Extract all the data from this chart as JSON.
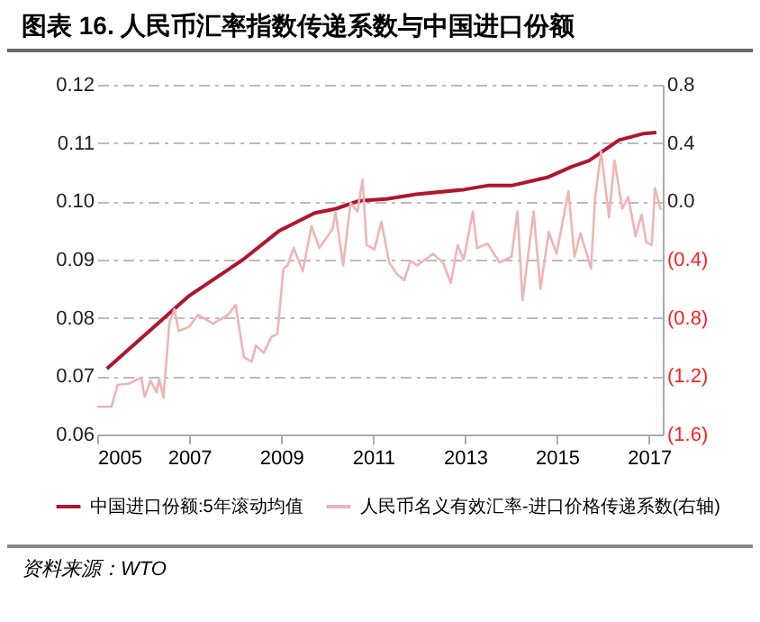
{
  "chart_data": {
    "type": "line",
    "title": "图表 16. 人民币汇率指数传递系数与中国进口份额",
    "annotations": [
      "资料来源：WTO"
    ],
    "xlim": [
      2005,
      2017.3
    ],
    "xticks": [
      2005,
      2007,
      2009,
      2011,
      2013,
      2015,
      2017
    ],
    "ylim": [
      0.06,
      0.12
    ],
    "yticks": [
      {
        "value": 0.06,
        "label": "0.06"
      },
      {
        "value": 0.07,
        "label": "0.07"
      },
      {
        "value": 0.08,
        "label": "0.08"
      },
      {
        "value": 0.09,
        "label": "0.09"
      },
      {
        "value": 0.1,
        "label": "0.10"
      },
      {
        "value": 0.11,
        "label": "0.11"
      },
      {
        "value": 0.12,
        "label": "0.12"
      }
    ],
    "y2lim": [
      -1.6,
      0.8
    ],
    "y2ticks": [
      {
        "value": -1.6,
        "label": "(1.6)"
      },
      {
        "value": -1.2,
        "label": "(1.2)"
      },
      {
        "value": -0.8,
        "label": "(0.8)"
      },
      {
        "value": -0.4,
        "label": "(0.4)"
      },
      {
        "value": 0,
        "label": "0.0"
      },
      {
        "value": 0.4,
        "label": "0.4"
      },
      {
        "value": 0.8,
        "label": "0.8"
      }
    ],
    "grid": "y",
    "legend": "bottom",
    "series": [
      {
        "name": "中国进口份额:5年滚动均值",
        "color": "#b0152d",
        "x": [
          2005.21,
          2007.0,
          2008.17,
          2008.95,
          2009.73,
          2010.18,
          2010.7,
          2011.29,
          2011.94,
          2012.97,
          2013.49,
          2014.01,
          2014.79,
          2015.31,
          2015.7,
          2016.35,
          2016.87,
          2017.16
        ],
        "values": [
          0.0713,
          0.0838,
          0.09,
          0.0949,
          0.098,
          0.0987,
          0.1001,
          0.1004,
          0.1012,
          0.102,
          0.1027,
          0.1027,
          0.1041,
          0.1059,
          0.107,
          0.1105,
          0.1116,
          0.1118
        ]
      },
      {
        "name": "人民币名义有效汇率-进口价格传递系数(右轴)",
        "color": "#f0b4b4",
        "axis": "y2",
        "x": [
          2005,
          2005.31,
          2005.44,
          2005.7,
          2005.96,
          2006.03,
          2006.16,
          2006.29,
          2006.35,
          2006.44,
          2006.57,
          2006.68,
          2006.77,
          2007.0,
          2007.19,
          2007.52,
          2007.84,
          2008.01,
          2008.19,
          2008.36,
          2008.45,
          2008.62,
          2008.79,
          2008.92,
          2009.05,
          2009.14,
          2009.27,
          2009.47,
          2009.66,
          2009.83,
          2010.12,
          2010.18,
          2010.35,
          2010.51,
          2010.66,
          2010.77,
          2010.86,
          2011.03,
          2011.18,
          2011.35,
          2011.52,
          2011.68,
          2011.81,
          2011.96,
          2012.3,
          2012.52,
          2012.69,
          2012.84,
          2012.97,
          2013.17,
          2013.26,
          2013.49,
          2013.75,
          2014.01,
          2014.14,
          2014.25,
          2014.49,
          2014.64,
          2014.82,
          2014.99,
          2015.25,
          2015.38,
          2015.51,
          2015.74,
          2015.83,
          2015.96,
          2016.13,
          2016.25,
          2016.42,
          2016.55,
          2016.71,
          2016.84,
          2016.94,
          2017.06,
          2017.13,
          2017.26
        ],
        "values": [
          -1.41,
          -1.41,
          -1.26,
          -1.25,
          -1.21,
          -1.34,
          -1.23,
          -1.31,
          -1.22,
          -1.35,
          -0.83,
          -0.74,
          -0.89,
          -0.86,
          -0.78,
          -0.84,
          -0.78,
          -0.71,
          -1.07,
          -1.1,
          -0.99,
          -1.04,
          -0.93,
          -0.91,
          -0.46,
          -0.44,
          -0.32,
          -0.48,
          -0.17,
          -0.32,
          -0.19,
          -0.07,
          -0.44,
          -0.01,
          -0.07,
          0.15,
          -0.3,
          -0.33,
          -0.14,
          -0.42,
          -0.5,
          -0.54,
          -0.41,
          -0.44,
          -0.36,
          -0.42,
          -0.56,
          -0.3,
          -0.4,
          -0.07,
          -0.32,
          -0.29,
          -0.42,
          -0.38,
          -0.07,
          -0.68,
          -0.07,
          -0.6,
          -0.21,
          -0.36,
          0.07,
          -0.38,
          -0.22,
          -0.46,
          0.03,
          0.34,
          -0.11,
          0.28,
          -0.05,
          0.03,
          -0.24,
          -0.09,
          -0.28,
          -0.3,
          0.09,
          -0.06
        ]
      }
    ]
  }
}
